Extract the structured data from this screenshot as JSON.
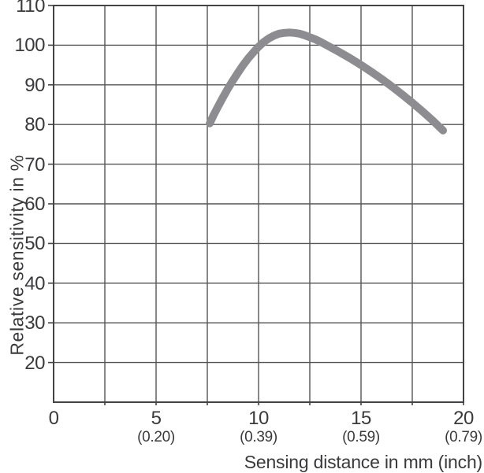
{
  "colors": {
    "background": "#ffffff",
    "grid": "#545456",
    "frame": "#434345",
    "curve": "#8d8d91",
    "text": "#3a3a3c"
  },
  "chart_data": {
    "type": "line",
    "title": "",
    "xlabel": "Sensing distance in mm (inch)",
    "ylabel": "Relative sensitivity in %",
    "grid": true,
    "legend_position": "none",
    "x_axis": {
      "min": 0,
      "max": 20,
      "grid_step": 2.5,
      "ticks": [
        {
          "value": 0,
          "mm": "0",
          "inch": ""
        },
        {
          "value": 5,
          "mm": "5",
          "inch": "(0.20)"
        },
        {
          "value": 10,
          "mm": "10",
          "inch": "(0.39)"
        },
        {
          "value": 15,
          "mm": "15",
          "inch": "(0.59)"
        },
        {
          "value": 20,
          "mm": "20",
          "inch": "(0.79)"
        }
      ]
    },
    "y_axis": {
      "min": 10,
      "max": 110,
      "grid_step": 10,
      "ticks": [
        110,
        100,
        90,
        80,
        70,
        60,
        50,
        40,
        30,
        20
      ]
    },
    "series": [
      {
        "name": "relative-sensitivity-curve",
        "color": "#8d8d91",
        "stroke_width": 10,
        "points": [
          [
            7.62,
            80.3
          ],
          [
            7.8,
            82.3
          ],
          [
            8.0,
            84.3
          ],
          [
            8.25,
            86.7
          ],
          [
            8.5,
            89.0
          ],
          [
            8.75,
            91.1
          ],
          [
            9.0,
            93.1
          ],
          [
            9.25,
            95.0
          ],
          [
            9.5,
            96.7
          ],
          [
            9.75,
            98.2
          ],
          [
            10.0,
            99.6
          ],
          [
            10.25,
            100.8
          ],
          [
            10.5,
            101.7
          ],
          [
            10.75,
            102.4
          ],
          [
            11.0,
            102.9
          ],
          [
            11.25,
            103.1
          ],
          [
            11.5,
            103.2
          ],
          [
            11.75,
            103.1
          ],
          [
            12.0,
            102.9
          ],
          [
            12.25,
            102.5
          ],
          [
            12.5,
            102.0
          ],
          [
            12.75,
            101.5
          ],
          [
            13.0,
            100.9
          ],
          [
            13.25,
            100.2
          ],
          [
            13.5,
            99.5
          ],
          [
            14.0,
            98.1
          ],
          [
            14.5,
            96.6
          ],
          [
            15.0,
            95.0
          ],
          [
            15.5,
            93.3
          ],
          [
            16.0,
            91.5
          ],
          [
            16.5,
            89.6
          ],
          [
            17.0,
            87.6
          ],
          [
            17.5,
            85.5
          ],
          [
            18.0,
            83.3
          ],
          [
            18.5,
            81.0
          ],
          [
            19.0,
            78.5
          ]
        ]
      }
    ]
  }
}
